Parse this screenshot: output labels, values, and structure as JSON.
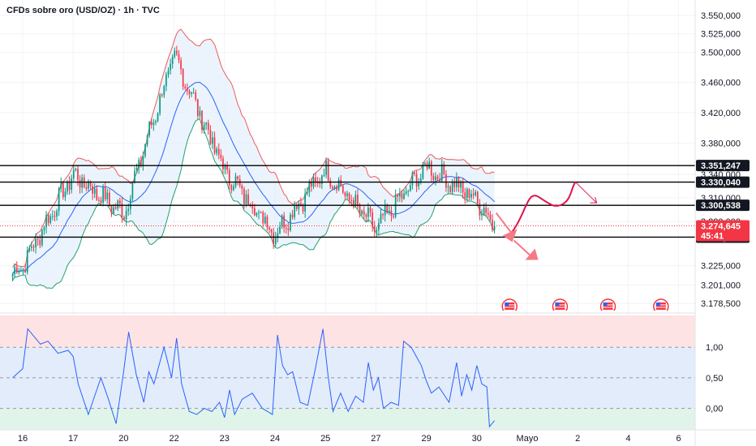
{
  "header": {
    "title": "CFDs sobre oro (USD/OZ) · 1h · TVC"
  },
  "chart_data": [
    {
      "type": "candlestick",
      "title": "CFDs sobre oro (USD/OZ) · 1h · TVC",
      "ylim": [
        3160,
        3560
      ],
      "y_scale": "log",
      "y_tick_labels": [
        "3.550,000",
        "3.525,000",
        "3.500,000",
        "3.460,000",
        "3.420,000",
        "3.380,000",
        "3.340,000",
        "3.310,000",
        "3.280,000",
        "3.225,000",
        "3.201,000",
        "3.178,500"
      ],
      "y_ticks": [
        3550,
        3525,
        3500,
        3460,
        3420,
        3380,
        3340,
        3310,
        3280,
        3225,
        3201,
        3178.5
      ],
      "x_tick_labels": [
        "16",
        "17",
        "20",
        "22",
        "23",
        "24",
        "25",
        "27",
        "29",
        "30",
        "Mayo",
        "2",
        "4",
        "6"
      ],
      "x_ticks": [
        0,
        1,
        2,
        3,
        4,
        5,
        6,
        7,
        8,
        9,
        10,
        11,
        12,
        13
      ],
      "x_range": [
        -0.2,
        13.3
      ],
      "anchors": {
        "x": [
          -0.2,
          0,
          1,
          2,
          3,
          4,
          5,
          6,
          7,
          8,
          9,
          9.35
        ],
        "y": [
          3215,
          3225,
          3340,
          3290,
          3495,
          3345,
          3265,
          3345,
          3270,
          3350,
          3308,
          3274.6
        ]
      },
      "bollinger": {
        "period": 20,
        "stddev": 2,
        "colors": {
          "upper": "#f05a5a",
          "middle": "#2962ff",
          "lower": "#26a069",
          "fill": "#e3effc"
        }
      },
      "horizontal_levels": [
        {
          "value": 3351.247,
          "label": "3.351,247"
        },
        {
          "value": 3330.04,
          "label": "3.330,040"
        },
        {
          "value": 3300.538,
          "label": "3.300,538"
        },
        {
          "value": 3260.432,
          "label": "3.260,432"
        }
      ],
      "current_price": {
        "value": 3274.645,
        "label": "3.274,645",
        "countdown": "45:41",
        "color": "#f23645"
      },
      "colors": {
        "up": "#089981",
        "down": "#f23645",
        "projection": "#e0134a"
      }
    },
    {
      "type": "line",
      "indicator": "oscillator",
      "ylim": [
        -0.35,
        1.52
      ],
      "y_ticks": [
        1.0,
        0.5,
        0.0
      ],
      "y_tick_labels": [
        "1,00",
        "0,50",
        "0,00"
      ],
      "bands": {
        "upper": 1.0,
        "lower": 0.0
      },
      "colors": {
        "line": "#2962ff",
        "top_zone": "#fde3e3",
        "mid_zone": "#e3ecfb",
        "bottom_zone": "#e1f4ea"
      },
      "x": [
        -0.2,
        0,
        0.1,
        0.2,
        0.35,
        0.5,
        0.7,
        0.9,
        1.0,
        1.1,
        1.3,
        1.55,
        1.7,
        1.85,
        2.0,
        2.1,
        2.25,
        2.4,
        2.5,
        2.6,
        2.8,
        2.95,
        3.05,
        3.15,
        3.3,
        3.45,
        3.6,
        3.75,
        3.9,
        4.0,
        4.1,
        4.2,
        4.35,
        4.55,
        4.75,
        4.95,
        5.05,
        5.15,
        5.25,
        5.35,
        5.5,
        5.65,
        5.8,
        5.95,
        6.05,
        6.15,
        6.3,
        6.45,
        6.6,
        6.75,
        6.85,
        6.95,
        7.05,
        7.15,
        7.3,
        7.45,
        7.55,
        7.7,
        7.8,
        7.9,
        8.0,
        8.1,
        8.25,
        8.45,
        8.6,
        8.7,
        8.8,
        8.9,
        9.0,
        9.1,
        9.2,
        9.25,
        9.35
      ],
      "values": [
        0.5,
        0.65,
        1.3,
        1.2,
        1.05,
        1.1,
        0.9,
        0.95,
        0.85,
        0.4,
        -0.1,
        0.5,
        0.15,
        -0.25,
        0.6,
        1.25,
        0.55,
        0.1,
        0.6,
        0.4,
        1.0,
        0.5,
        1.15,
        0.4,
        -0.05,
        -0.1,
        0.0,
        -0.05,
        0.1,
        -0.15,
        0.3,
        -0.1,
        0.15,
        0.25,
        0.0,
        -0.1,
        1.2,
        0.7,
        0.55,
        0.6,
        0.1,
        0.05,
        0.65,
        1.3,
        0.55,
        -0.05,
        0.25,
        -0.05,
        0.2,
        0.1,
        0.75,
        0.3,
        0.5,
        0.0,
        0.1,
        0.05,
        1.1,
        1.0,
        0.85,
        0.7,
        0.45,
        0.25,
        0.35,
        0.1,
        0.75,
        0.2,
        0.55,
        0.3,
        0.7,
        0.4,
        0.35,
        -0.3,
        -0.2
      ]
    }
  ]
}
